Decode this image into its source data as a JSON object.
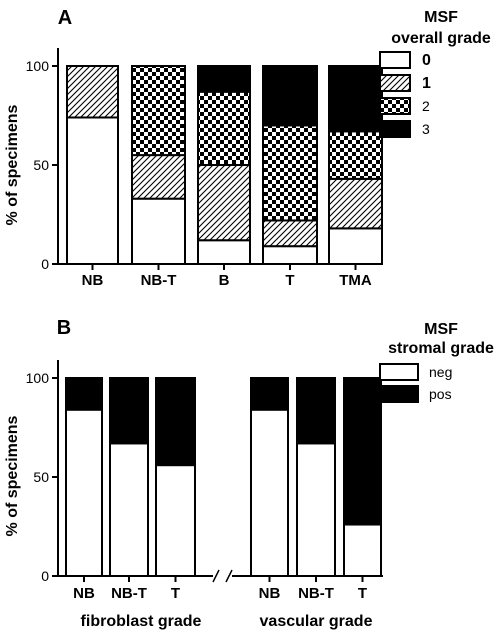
{
  "chart_data": [
    {
      "type": "bar",
      "stacked": true,
      "panel_label": "A",
      "ylabel": "% of specimens",
      "ylim": [
        0,
        100
      ],
      "yticks": [
        "0",
        "50",
        "100"
      ],
      "categories": [
        "NB",
        "NB-T",
        "B",
        "T",
        "TMA"
      ],
      "legend_title": [
        "MSF",
        "overall grade"
      ],
      "legend_position": "top-right",
      "series": [
        {
          "name": "0",
          "pattern": "white",
          "values": [
            74,
            33,
            12,
            9,
            18
          ]
        },
        {
          "name": "1",
          "pattern": "hatch",
          "values": [
            26,
            22,
            38,
            13,
            25
          ]
        },
        {
          "name": "2",
          "pattern": "checker",
          "values": [
            0,
            45,
            37,
            48,
            24
          ]
        },
        {
          "name": "3",
          "pattern": "black",
          "values": [
            0,
            0,
            13,
            30,
            33
          ]
        }
      ]
    },
    {
      "type": "bar",
      "stacked": true,
      "panel_label": "B",
      "ylabel": "% of specimens",
      "ylim": [
        0,
        100
      ],
      "yticks": [
        "0",
        "50",
        "100"
      ],
      "categories": [
        "NB",
        "NB-T",
        "T",
        "NB",
        "NB-T",
        "T"
      ],
      "groups": [
        {
          "label": "fibroblast grade",
          "categories": [
            "NB",
            "NB-T",
            "T"
          ]
        },
        {
          "label": "vascular grade",
          "categories": [
            "NB",
            "NB-T",
            "T"
          ]
        }
      ],
      "legend_title": [
        "MSF",
        "stromal grade"
      ],
      "legend_position": "top-right",
      "series": [
        {
          "name": "neg",
          "pattern": "white",
          "values": [
            84,
            67,
            56,
            84,
            67,
            26
          ]
        },
        {
          "name": "pos",
          "pattern": "black",
          "values": [
            16,
            33,
            44,
            16,
            33,
            74
          ]
        }
      ]
    }
  ]
}
